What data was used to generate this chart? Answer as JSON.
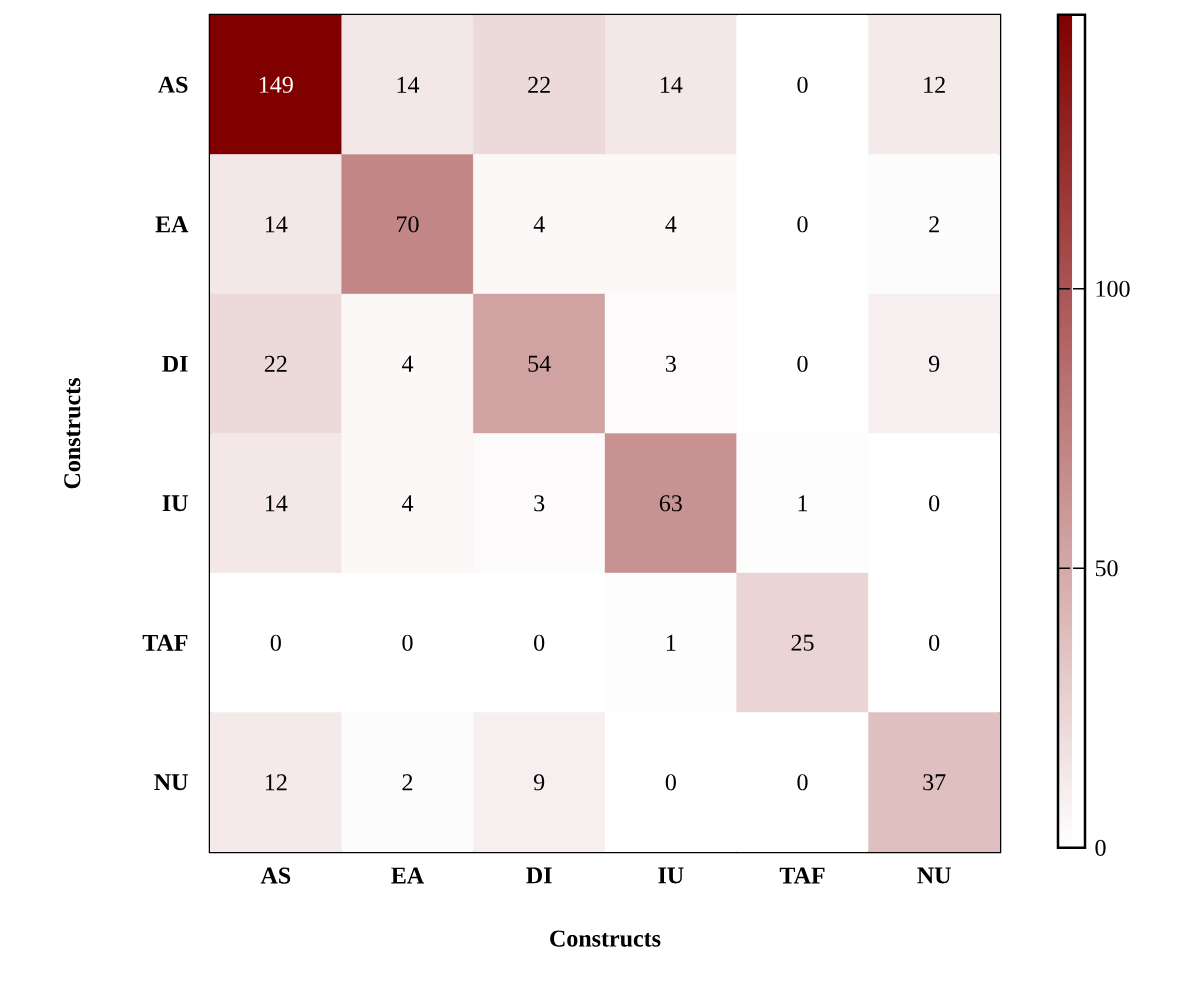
{
  "chart_data": {
    "type": "heatmap",
    "xlabel": "Constructs",
    "ylabel": "Constructs",
    "categories": [
      "AS",
      "EA",
      "DI",
      "IU",
      "TAF",
      "NU"
    ],
    "y_categories": [
      "AS",
      "EA",
      "DI",
      "IU",
      "TAF",
      "NU"
    ],
    "cells": [
      [
        149,
        14,
        22,
        14,
        0,
        12
      ],
      [
        14,
        70,
        4,
        4,
        0,
        2
      ],
      [
        22,
        4,
        54,
        3,
        0,
        9
      ],
      [
        14,
        4,
        3,
        63,
        1,
        0
      ],
      [
        0,
        0,
        0,
        1,
        25,
        0
      ],
      [
        12,
        2,
        9,
        0,
        0,
        37
      ]
    ],
    "data_labels": true,
    "clim": [
      0,
      149
    ],
    "cticks": [
      0,
      50,
      100
    ],
    "color": "#800000"
  }
}
